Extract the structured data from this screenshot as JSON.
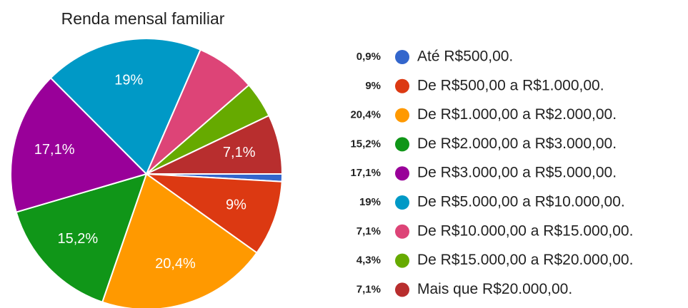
{
  "chart_data": {
    "type": "pie",
    "title": "Renda mensal familiar",
    "categories": [
      "Até R$500,00.",
      "De R$500,00 a R$1.000,00.",
      "De R$1.000,00 a R$2.000,00.",
      "De R$2.000,00 a R$3.000,00.",
      "De R$3.000,00 a R$5.000,00.",
      "De R$5.000,00 a R$10.000,00.",
      "De R$10.000,00 a R$15.000,00.",
      "De R$15.000,00 a R$20.000,00.",
      "Mais que R$20.000,00."
    ],
    "values": [
      0.9,
      9,
      20.4,
      15.2,
      17.1,
      19,
      7.1,
      4.3,
      7.1
    ],
    "value_labels": [
      "0,9%",
      "9%",
      "20,4%",
      "15,2%",
      "17,1%",
      "19%",
      "7,1%",
      "4,3%",
      "7,1%"
    ],
    "colors": [
      "#3366cc",
      "#dc3912",
      "#ff9900",
      "#109618",
      "#990099",
      "#0099c6",
      "#dd4477",
      "#66aa00",
      "#b82e2e"
    ],
    "slice_labels_shown": [
      false,
      true,
      true,
      true,
      true,
      true,
      false,
      false,
      true
    ],
    "legend": "right"
  }
}
